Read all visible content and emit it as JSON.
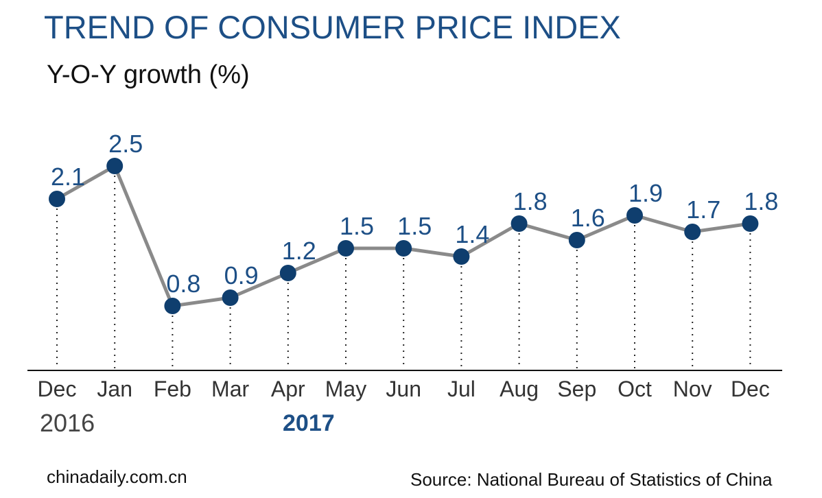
{
  "header": {
    "title": "TREND OF CONSUMER PRICE INDEX",
    "subtitle": "Y-O-Y growth (%)"
  },
  "years": {
    "left": "2016",
    "middle": "2017"
  },
  "footer": {
    "site": "chinadaily.com.cn",
    "source": "Source: National Bureau of Statistics of China"
  },
  "colors": {
    "accent": "#1d4f86",
    "marker": "#0f3e6e",
    "line": "#8a8a8a",
    "axis": "#111111"
  },
  "chart_data": {
    "type": "line",
    "title": "TREND OF CONSUMER PRICE INDEX",
    "subtitle": "Y-O-Y growth (%)",
    "categories": [
      "Dec",
      "Jan",
      "Feb",
      "Mar",
      "Apr",
      "May",
      "Jun",
      "Jul",
      "Aug",
      "Sep",
      "Oct",
      "Nov",
      "Dec"
    ],
    "values": [
      2.1,
      2.5,
      0.8,
      0.9,
      1.2,
      1.5,
      1.5,
      1.4,
      1.8,
      1.6,
      1.9,
      1.7,
      1.8
    ],
    "value_labels": [
      "2.1",
      "2.5",
      "0.8",
      "0.9",
      "1.2",
      "1.5",
      "1.5",
      "1.4",
      "1.8",
      "1.6",
      "1.9",
      "1.7",
      "1.8"
    ],
    "ylim": [
      0,
      3
    ],
    "grid": false,
    "legend": "none",
    "drop_lines": "dotted"
  }
}
